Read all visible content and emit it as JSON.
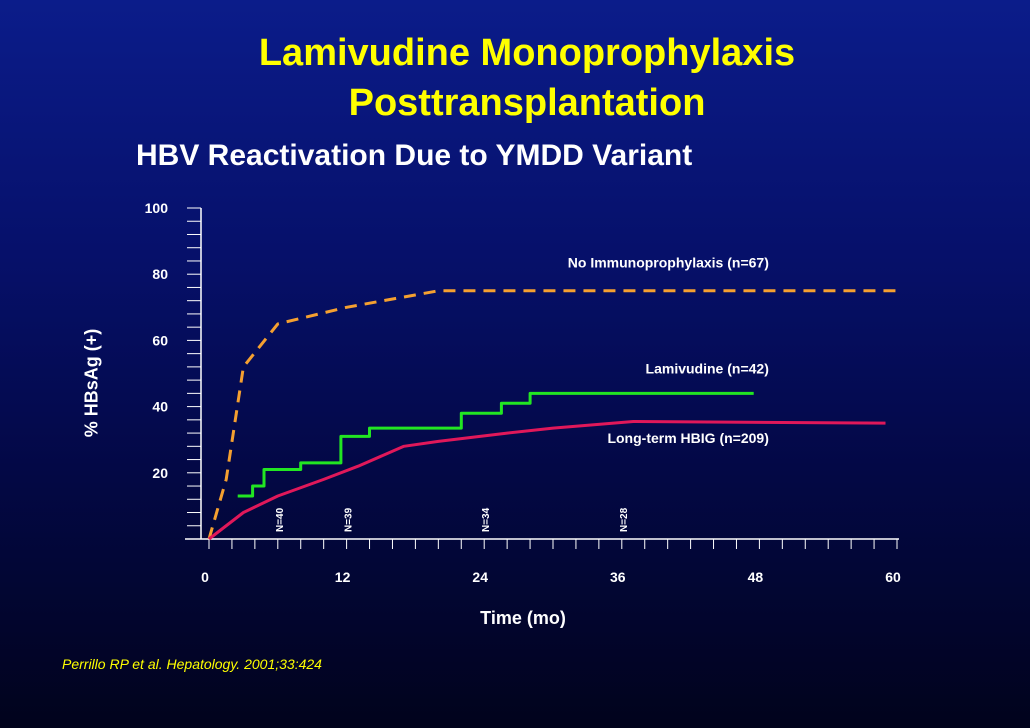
{
  "header": {
    "title_line1": "Lamivudine Monoprophylaxis",
    "title_line2": "Posttransplantation",
    "subtitle": "HBV Reactivation Due to YMDD Variant"
  },
  "citation": "Perrillo RP et al. Hepatology. 2001;33:424",
  "colors": {
    "title": "#ffff00",
    "no_immunoprophylaxis": "#f5a030",
    "lamivudine": "#22e622",
    "hbig": "#e0185a",
    "axis": "#ffffff"
  },
  "chart_data": {
    "type": "line",
    "title": "HBV Reactivation Due to YMDD Variant",
    "xlabel": "Time (mo)",
    "ylabel": "% HBsAg (+)",
    "xlim": [
      0,
      60
    ],
    "ylim": [
      0,
      100
    ],
    "x_ticks": [
      0,
      12,
      24,
      36,
      48,
      60
    ],
    "y_ticks": [
      20,
      40,
      60,
      80,
      100
    ],
    "grid": false,
    "series": [
      {
        "name": "No Immunoprophylaxis (n=67)",
        "color": "#f5a030",
        "style": "dashed",
        "label_at": [
          49,
          82
        ],
        "points": [
          [
            0,
            0
          ],
          [
            1.5,
            18
          ],
          [
            3,
            52
          ],
          [
            6,
            65
          ],
          [
            12,
            70
          ],
          [
            20,
            75
          ],
          [
            60,
            75
          ]
        ]
      },
      {
        "name": "Lamivudine (n=42)",
        "color": "#22e622",
        "style": "solid",
        "label_at": [
          49,
          50
        ],
        "points": [
          [
            2.5,
            13
          ],
          [
            3.8,
            13
          ],
          [
            3.8,
            16
          ],
          [
            4.8,
            16
          ],
          [
            4.8,
            21
          ],
          [
            8,
            21
          ],
          [
            8,
            23
          ],
          [
            11.5,
            23
          ],
          [
            11.5,
            31
          ],
          [
            14,
            31
          ],
          [
            14,
            33.5
          ],
          [
            22,
            33.5
          ],
          [
            22,
            38
          ],
          [
            25.5,
            38
          ],
          [
            25.5,
            41
          ],
          [
            28,
            41
          ],
          [
            28,
            44
          ],
          [
            47.5,
            44
          ]
        ]
      },
      {
        "name": "Long-term HBIG (n=209)",
        "color": "#e0185a",
        "style": "solid",
        "label_at": [
          49,
          29
        ],
        "points": [
          [
            0,
            0
          ],
          [
            3,
            8
          ],
          [
            6,
            13
          ],
          [
            10,
            18
          ],
          [
            13,
            22
          ],
          [
            17,
            28
          ],
          [
            20,
            29.5
          ],
          [
            26,
            32
          ],
          [
            30,
            33.5
          ],
          [
            37,
            35.5
          ],
          [
            59,
            35
          ]
        ]
      }
    ],
    "annotations": [
      {
        "text": "N=40",
        "x": 6
      },
      {
        "text": "N=39",
        "x": 12
      },
      {
        "text": "N=34",
        "x": 24
      },
      {
        "text": "N=28",
        "x": 36
      }
    ]
  }
}
